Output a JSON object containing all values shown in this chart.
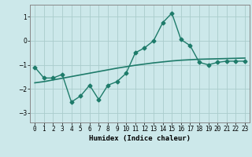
{
  "x": [
    0,
    1,
    2,
    3,
    4,
    5,
    6,
    7,
    8,
    9,
    10,
    11,
    12,
    13,
    14,
    15,
    16,
    17,
    18,
    19,
    20,
    21,
    22,
    23
  ],
  "y_jagged": [
    -1.1,
    -1.55,
    -1.55,
    -1.4,
    -2.55,
    -2.3,
    -1.85,
    -2.45,
    -1.85,
    -1.7,
    -1.35,
    -0.5,
    -0.3,
    0.0,
    0.75,
    1.15,
    0.05,
    -0.2,
    -0.9,
    -1.0,
    -0.9,
    -0.85,
    -0.85,
    -0.85
  ],
  "y_trend": [
    -1.75,
    -1.7,
    -1.63,
    -1.56,
    -1.49,
    -1.42,
    -1.35,
    -1.28,
    -1.21,
    -1.14,
    -1.08,
    -1.02,
    -0.97,
    -0.92,
    -0.88,
    -0.84,
    -0.81,
    -0.79,
    -0.77,
    -0.76,
    -0.75,
    -0.74,
    -0.73,
    -0.72
  ],
  "line_color": "#1e7b6a",
  "bg_color": "#cce8ea",
  "grid_color": "#aacccc",
  "xlabel": "Humidex (Indice chaleur)",
  "ylim": [
    -3.4,
    1.5
  ],
  "xlim": [
    -0.5,
    23.5
  ],
  "yticks": [
    -3,
    -2,
    -1,
    0,
    1
  ],
  "marker": "D",
  "markersize": 2.5,
  "linewidth": 1.0,
  "label_fontsize": 6.5,
  "tick_fontsize": 5.5
}
